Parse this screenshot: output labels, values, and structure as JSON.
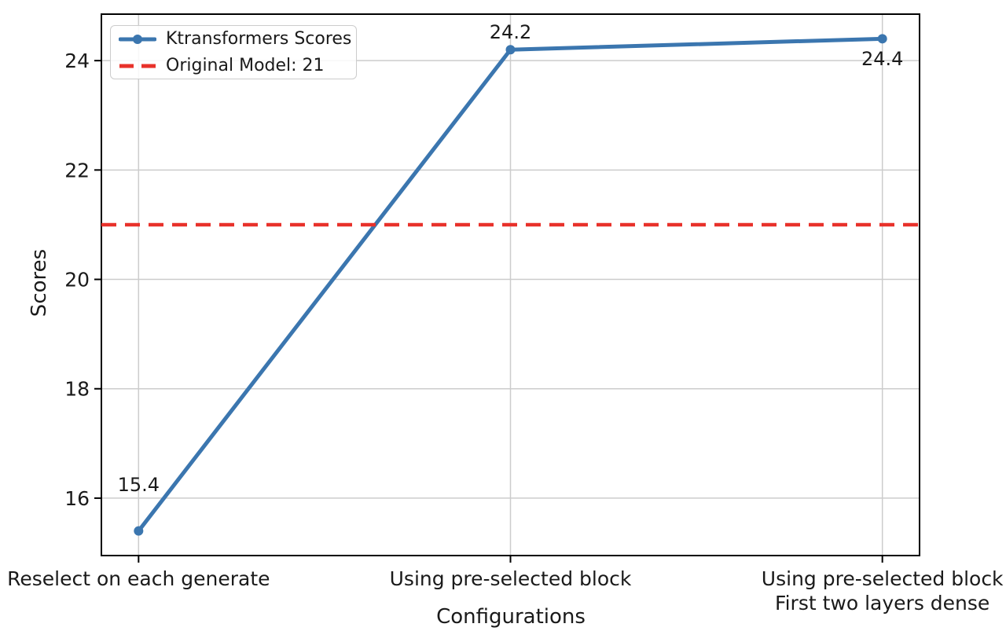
{
  "chart_data": {
    "type": "line",
    "title": "",
    "xlabel": "Configurations",
    "ylabel": "Scores",
    "categories": [
      "Reselect on each generate",
      "Using pre-selected block",
      "Using pre-selected block\nFirst two layers dense"
    ],
    "series": [
      {
        "name": "Ktransformers Scores",
        "values": [
          15.4,
          24.2,
          24.4
        ],
        "color": "#3b76af",
        "style": "solid-with-circle-markers"
      }
    ],
    "reference_line": {
      "label": "Original Model: 21",
      "value": 21,
      "color": "#e8312a",
      "style": "dashed"
    },
    "point_labels": [
      "15.4",
      "24.2",
      "24.4"
    ],
    "yticks": [
      16,
      18,
      20,
      22,
      24
    ],
    "ylim": [
      14.95,
      24.85
    ],
    "grid": true,
    "legend_position": "upper-left",
    "colors": {
      "grid": "#cccccc",
      "axis": "#000000",
      "text": "#1a1a1a",
      "background": "#ffffff"
    }
  }
}
